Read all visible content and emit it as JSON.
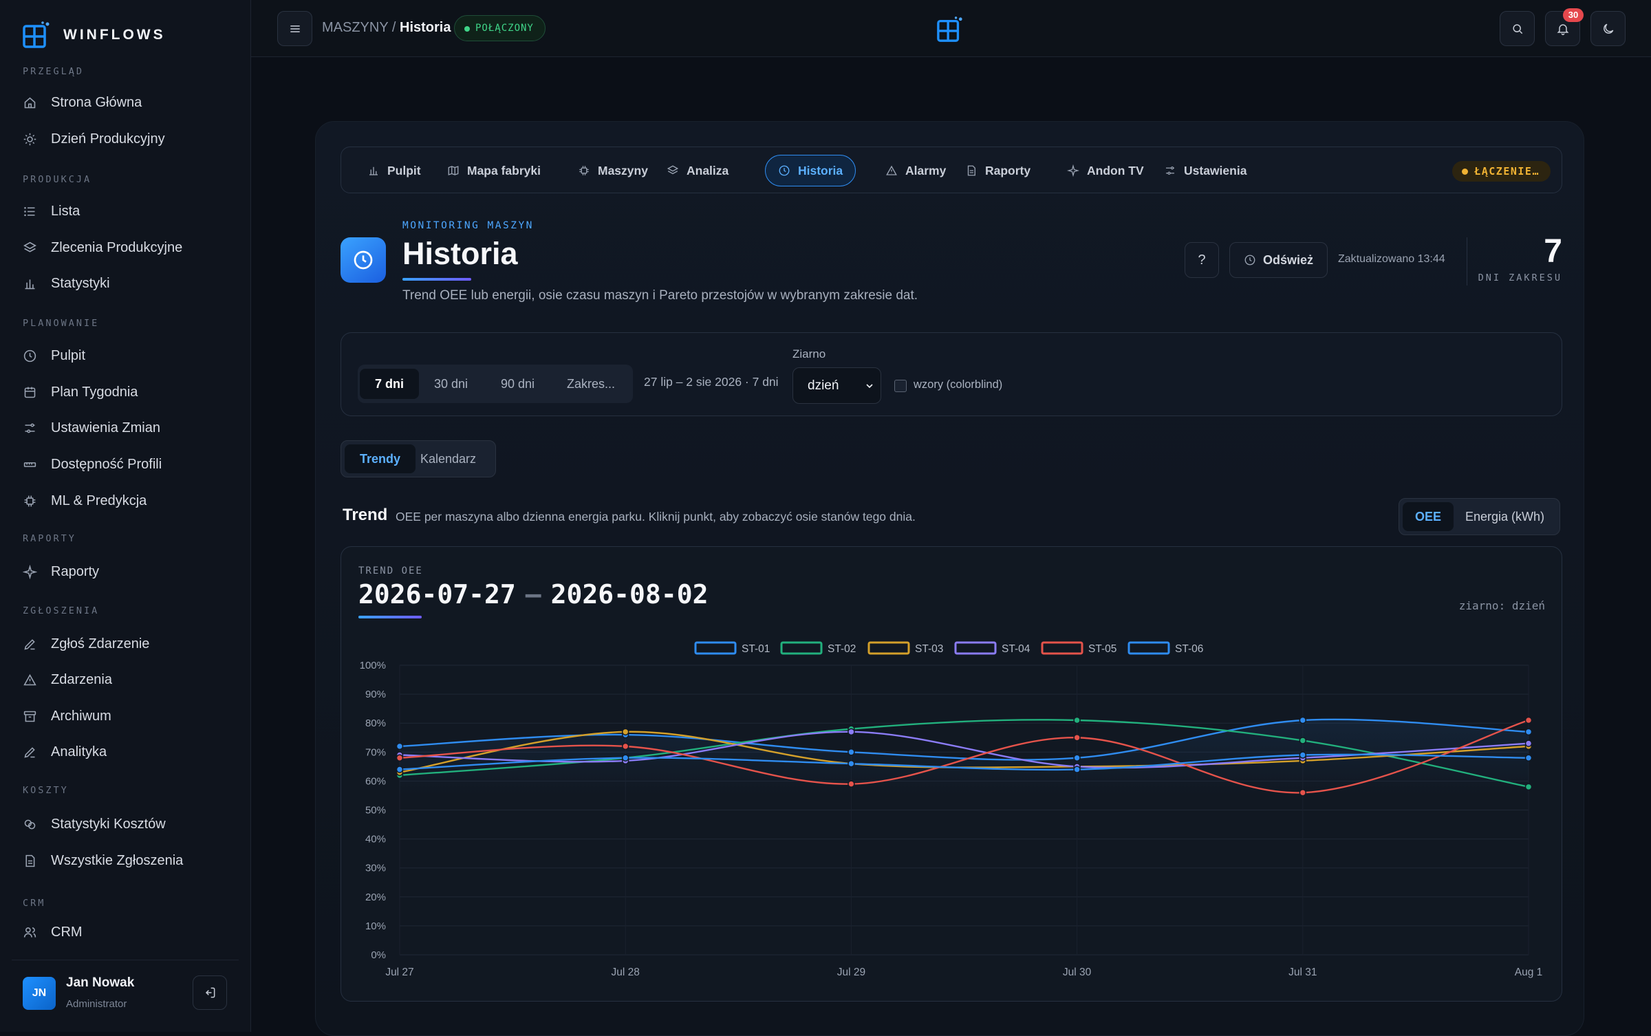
{
  "brand": {
    "name": "WINFLOWS"
  },
  "sidebar": {
    "sections": [
      {
        "title": "PRZEGLĄD",
        "items": [
          {
            "label": "Strona Główna",
            "icon": "home-icon"
          },
          {
            "label": "Dzień Produkcyjny",
            "icon": "sun-icon"
          }
        ]
      },
      {
        "title": "PRODUKCJA",
        "items": [
          {
            "label": "Lista",
            "icon": "list-icon"
          },
          {
            "label": "Zlecenia Produkcyjne",
            "icon": "layers-icon"
          },
          {
            "label": "Statystyki",
            "icon": "bar-chart-icon"
          }
        ]
      },
      {
        "title": "PLANOWANIE",
        "items": [
          {
            "label": "Pulpit",
            "icon": "clock-icon"
          },
          {
            "label": "Plan Tygodnia",
            "icon": "calendar-icon"
          },
          {
            "label": "Ustawienia Zmian",
            "icon": "sliders-icon"
          },
          {
            "label": "Dostępność Profili",
            "icon": "ruler-icon"
          },
          {
            "label": "ML & Predykcja",
            "icon": "cpu-icon"
          }
        ]
      },
      {
        "title": "RAPORTY",
        "items": [
          {
            "label": "Raporty",
            "icon": "sparkle-icon"
          }
        ]
      },
      {
        "title": "ZGŁOSZENIA",
        "items": [
          {
            "label": "Zgłoś Zdarzenie",
            "icon": "pencil-icon"
          },
          {
            "label": "Zdarzenia",
            "icon": "warning-icon"
          },
          {
            "label": "Archiwum",
            "icon": "archive-icon"
          },
          {
            "label": "Analityka",
            "icon": "pencil-icon"
          }
        ]
      },
      {
        "title": "KOSZTY",
        "items": [
          {
            "label": "Statystyki Kosztów",
            "icon": "coins-icon"
          },
          {
            "label": "Wszystkie Zgłoszenia",
            "icon": "document-icon"
          }
        ]
      },
      {
        "title": "CRM",
        "items": [
          {
            "label": "CRM",
            "icon": "users-icon"
          }
        ]
      }
    ],
    "user": {
      "initials": "JN",
      "name": "Jan Nowak",
      "role": "Administrator"
    }
  },
  "topbar": {
    "breadcrumb": {
      "parent": "MASZYNY",
      "separator": "/",
      "current": "Historia"
    },
    "status": "POŁĄCZONY",
    "notifications": "30"
  },
  "tabs": [
    {
      "label": "Pulpit",
      "icon": "bar-chart-icon"
    },
    {
      "label": "Mapa fabryki",
      "icon": "map-icon"
    },
    {
      "label": "Maszyny",
      "icon": "cpu-icon"
    },
    {
      "label": "Analiza",
      "icon": "layers-icon"
    },
    {
      "label": "Historia",
      "icon": "clock-icon",
      "active": true
    },
    {
      "label": "Alarmy",
      "icon": "warning-icon"
    },
    {
      "label": "Raporty",
      "icon": "document-icon"
    },
    {
      "label": "Andon TV",
      "icon": "sparkle-icon"
    },
    {
      "label": "Ustawienia",
      "icon": "sliders-icon"
    }
  ],
  "tabs_status": "ŁĄCZENIE…",
  "header": {
    "eyebrow": "MONITORING MASZYN",
    "title": "Historia",
    "subtitle": "Trend OEE lub energii, osie czasu maszyn i Pareto przestojów w wybranym zakresie dat.",
    "help": "?",
    "refresh": "Odśwież",
    "updated": "Zaktualizowano 13:44",
    "days_value": "7",
    "days_label": "DNI ZAKRESU"
  },
  "filters": {
    "ranges": [
      "7 dni",
      "30 dni",
      "90 dni",
      "Zakres..."
    ],
    "active_range": "7 dni",
    "range_text": "27 lip – 2 sie 2026 · 7 dni",
    "grain_label": "Ziarno",
    "grain_value": "dzień",
    "patterns_label": "wzory (colorblind)"
  },
  "views": [
    "Trendy",
    "Kalendarz"
  ],
  "trend": {
    "title": "Trend",
    "subtitle": "OEE per maszyna albo dzienna energia parku. Kliknij punkt, aby zobaczyć osie stanów tego dnia.",
    "metrics": [
      "OEE",
      "Energia (kWh)"
    ]
  },
  "chart_card": {
    "tag": "TREND OEE",
    "from": "2026-07-27",
    "dash": "–",
    "to": "2026-08-02",
    "grain": "ziarno: dzień"
  },
  "chart_data": {
    "type": "line",
    "x": [
      "Jul 27",
      "Jul 28",
      "Jul 29",
      "Jul 30",
      "Jul 31",
      "Aug 1"
    ],
    "y_ticks": [
      "0%",
      "10%",
      "20%",
      "30%",
      "40%",
      "50%",
      "60%",
      "70%",
      "80%",
      "90%",
      "100%"
    ],
    "ylim": [
      0,
      100
    ],
    "grid": true,
    "legend": "top-center",
    "series": [
      {
        "name": "ST-01",
        "color": "#2f8cf0",
        "values": [
          72,
          76,
          70,
          68,
          81,
          77
        ]
      },
      {
        "name": "ST-02",
        "color": "#22b07d",
        "values": [
          62,
          68,
          78,
          81,
          74,
          58
        ]
      },
      {
        "name": "ST-03",
        "color": "#d4a02a",
        "values": [
          63,
          77,
          66,
          65,
          67,
          72
        ]
      },
      {
        "name": "ST-04",
        "color": "#8b7cf6",
        "values": [
          69,
          67,
          77,
          65,
          68,
          73
        ]
      },
      {
        "name": "ST-05",
        "color": "#e5534b",
        "values": [
          68,
          72,
          59,
          75,
          56,
          81
        ]
      },
      {
        "name": "ST-06",
        "color": "#2f8cf0",
        "values": [
          64,
          68,
          66,
          64,
          69,
          68
        ]
      }
    ]
  }
}
